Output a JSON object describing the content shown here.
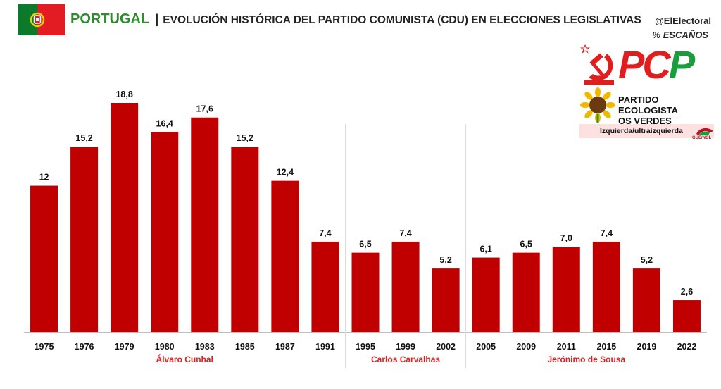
{
  "header": {
    "country": "PORTUGAL",
    "separator": "|",
    "title": "EVOLUCIÓN HISTÓRICA DEL PARTIDO COMUNISTA (CDU)  EN ELECCIONES LEGISLATIVAS",
    "handle": "@ElElectoral",
    "subtitle": "% ESCAÑOS"
  },
  "logos": {
    "pcp_text": "PCP",
    "pev_line1": "PARTIDO ECOLOGISTA",
    "pev_line2": "OS VERDES",
    "ideology": "Izquierda/ultraizquierda",
    "gue_label": "GUE/NGL"
  },
  "colors": {
    "bar": "#c00000",
    "leader": "#e02020",
    "country": "#2e8b2e"
  },
  "chart_data": {
    "type": "bar",
    "title": "EVOLUCIÓN HISTÓRICA DEL PARTIDO COMUNISTA (CDU)  EN ELECCIONES LEGISLATIVAS",
    "ylabel": "% ESCAÑOS",
    "categories": [
      "1975",
      "1976",
      "1979",
      "1980",
      "1983",
      "1985",
      "1987",
      "1991",
      "1995",
      "1999",
      "2002",
      "2005",
      "2009",
      "2011",
      "2015",
      "2019",
      "2022"
    ],
    "values": [
      12,
      15.2,
      18.8,
      16.4,
      17.6,
      15.2,
      12.4,
      7.4,
      6.5,
      7.4,
      5.2,
      6.1,
      6.5,
      7.0,
      7.4,
      5.2,
      2.6
    ],
    "value_labels": [
      "12",
      "15,2",
      "18,8",
      "16,4",
      "17,6",
      "15,2",
      "12,4",
      "7,4",
      "6,5",
      "7,4",
      "5,2",
      "6,1",
      "6,5",
      "7,0",
      "7,4",
      "5,2",
      "2,6"
    ],
    "ylim": [
      0,
      18.8
    ],
    "grid": false,
    "groups": [
      {
        "leader": "Álvaro Cunhal",
        "from": "1975",
        "to": "1991"
      },
      {
        "leader": "Carlos Carvalhas",
        "from": "1995",
        "to": "2002"
      },
      {
        "leader": "Jerónimo de Sousa",
        "from": "2005",
        "to": "2022"
      }
    ]
  }
}
